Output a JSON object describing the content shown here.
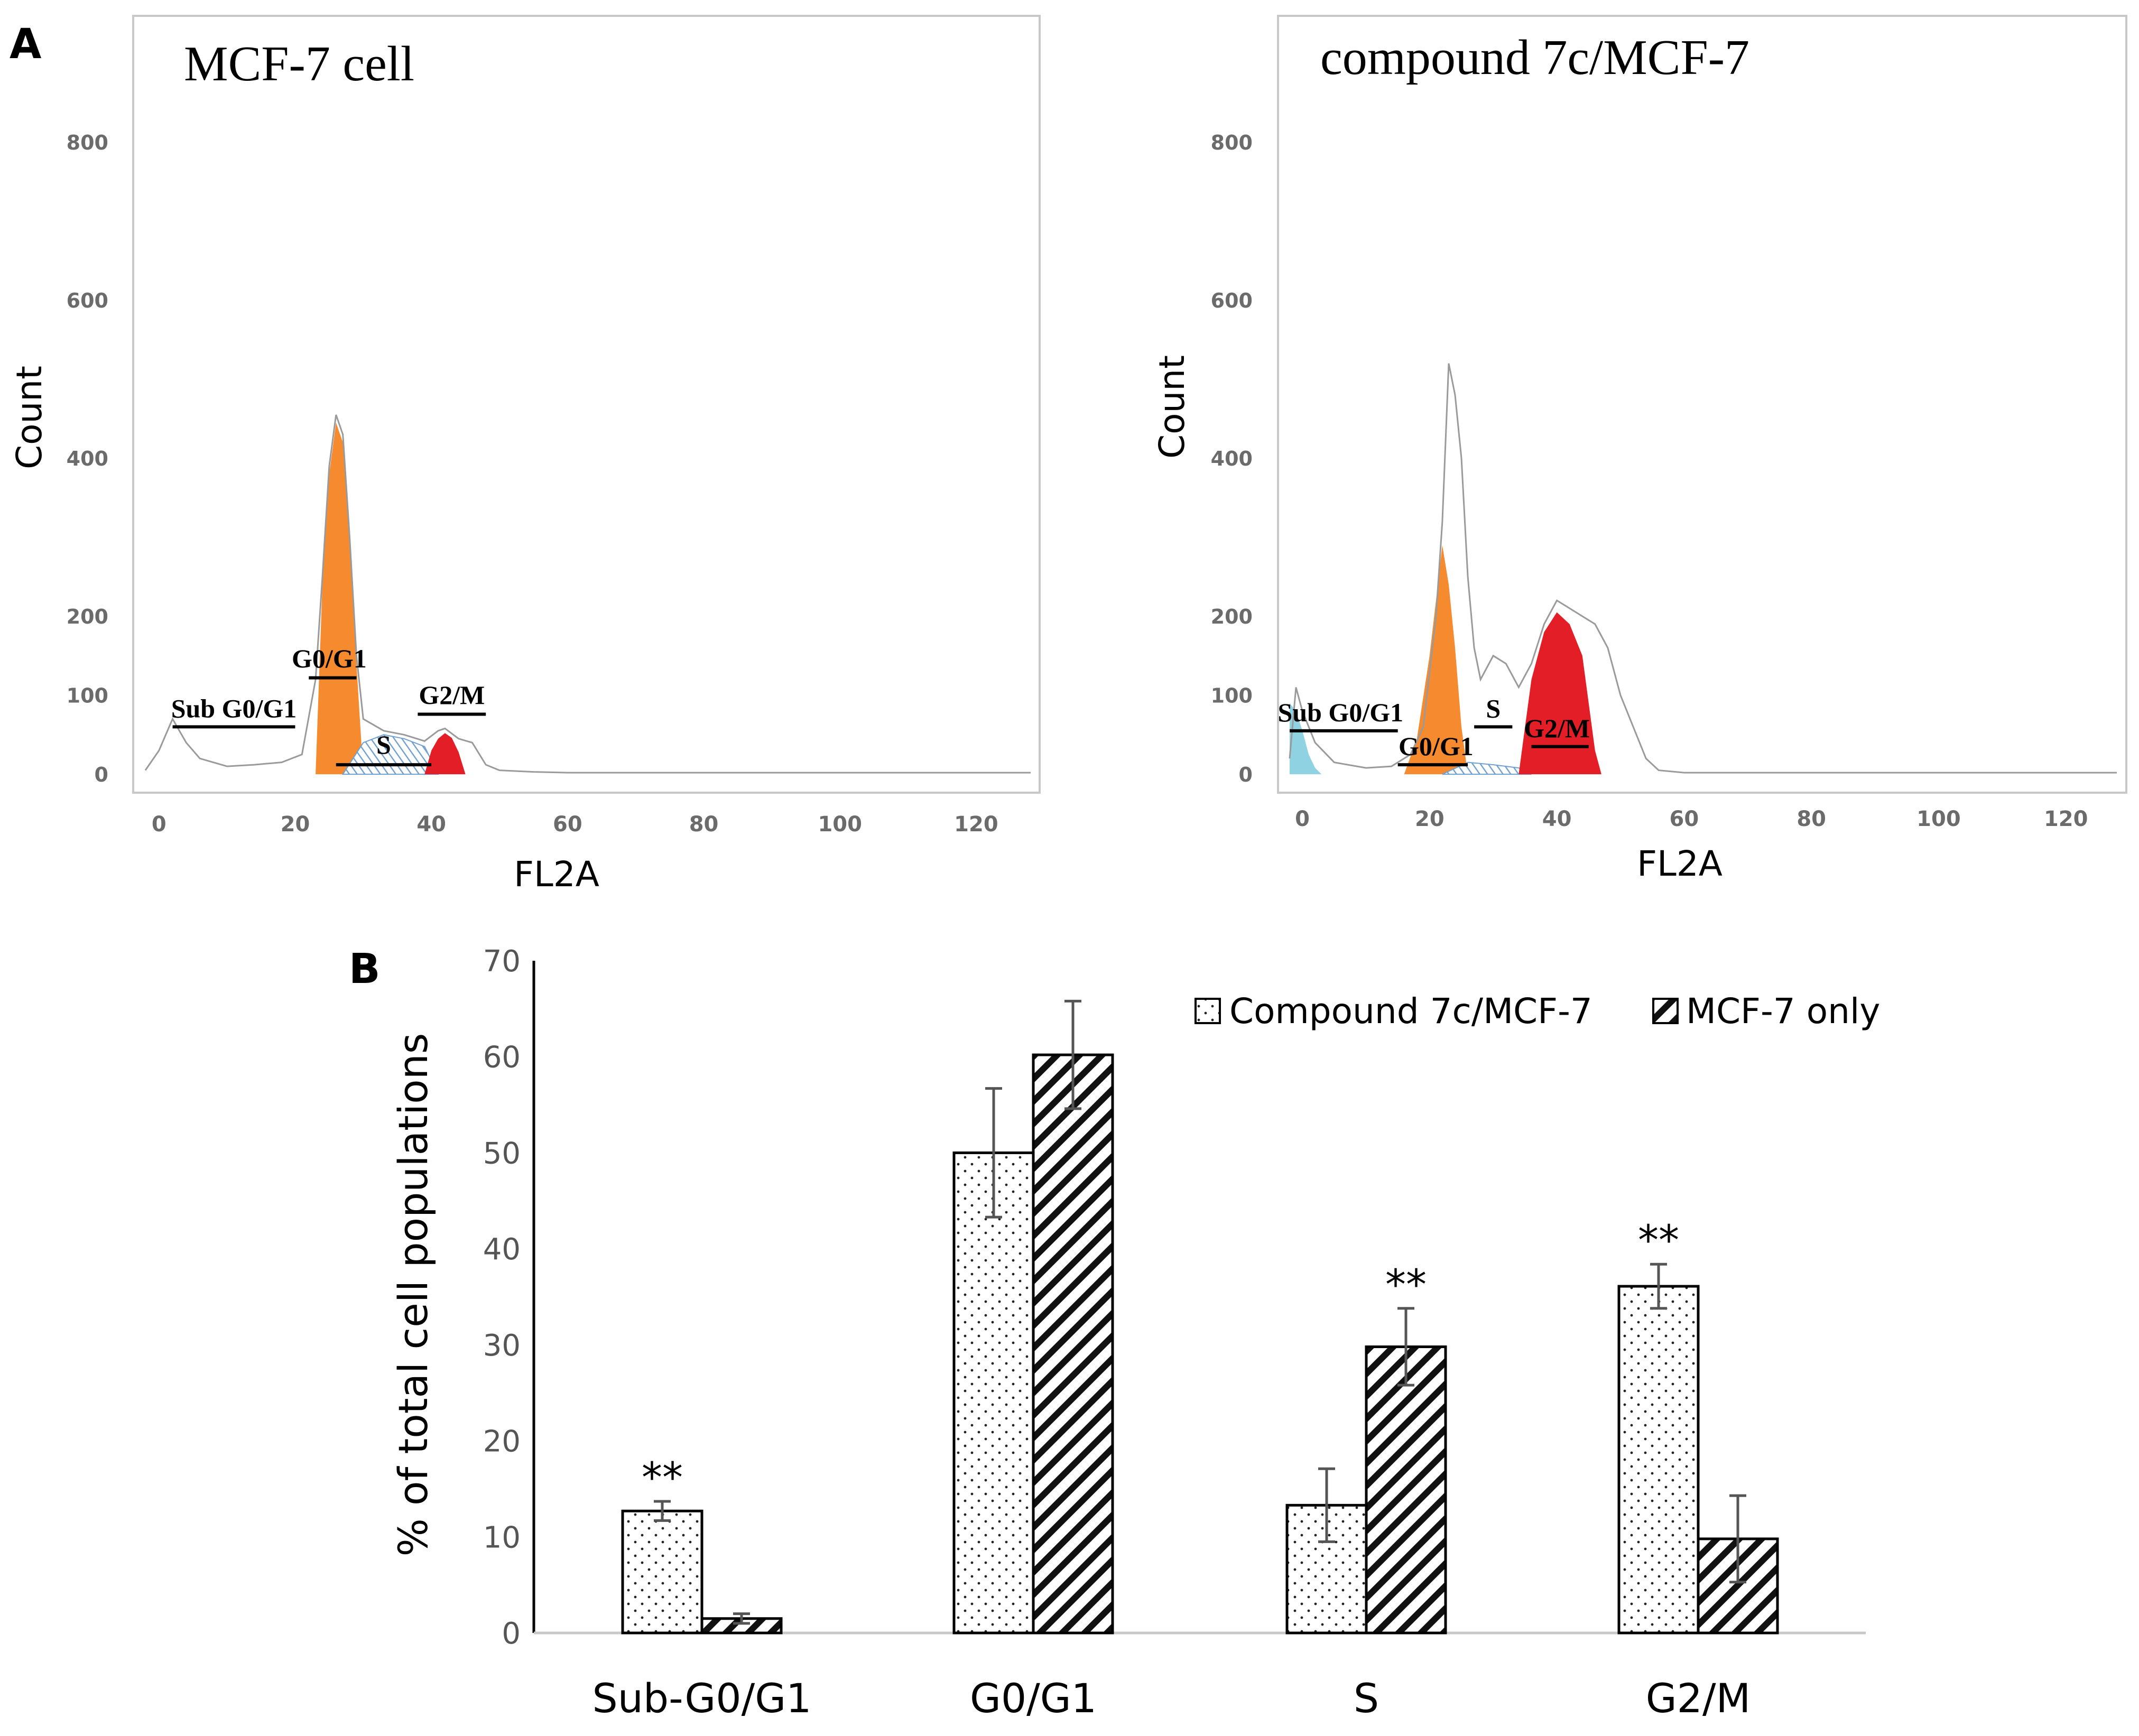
{
  "panel_labels": {
    "a": "A",
    "b": "B"
  },
  "colors": {
    "orange": "#f58a2f",
    "red": "#e31e26",
    "cyan": "#8fd3e3",
    "s_hatch": "#6fa0d0",
    "envelope": "#9a9a9a",
    "frame": "#c8c8c8",
    "tick_text": "#6b6b6b"
  },
  "chart_data": [
    {
      "type": "histogram",
      "title": "MCF-7 cell",
      "xlabel": "FL2A",
      "ylabel": "Count",
      "xlim": [
        -2,
        128
      ],
      "ylim": [
        -10,
        960
      ],
      "xticks": [
        0,
        20,
        40,
        60,
        80,
        100,
        120
      ],
      "yticks": [
        0,
        100,
        200,
        400,
        600,
        800
      ],
      "envelope": [
        [
          -2,
          5
        ],
        [
          0,
          30
        ],
        [
          2,
          70
        ],
        [
          4,
          40
        ],
        [
          6,
          20
        ],
        [
          10,
          10
        ],
        [
          14,
          12
        ],
        [
          18,
          15
        ],
        [
          21,
          25
        ],
        [
          23,
          120
        ],
        [
          24,
          250
        ],
        [
          25,
          390
        ],
        [
          26,
          455
        ],
        [
          27,
          430
        ],
        [
          28,
          300
        ],
        [
          29,
          150
        ],
        [
          30,
          70
        ],
        [
          33,
          55
        ],
        [
          36,
          50
        ],
        [
          39,
          42
        ],
        [
          41,
          55
        ],
        [
          42,
          58
        ],
        [
          44,
          45
        ],
        [
          46,
          40
        ],
        [
          48,
          12
        ],
        [
          50,
          5
        ],
        [
          55,
          3
        ],
        [
          60,
          2
        ],
        [
          128,
          2
        ]
      ],
      "phases": [
        {
          "name": "G0/G1",
          "color_key": "orange",
          "points": [
            [
              23,
              0
            ],
            [
              24,
              240
            ],
            [
              25,
              380
            ],
            [
              26,
              445
            ],
            [
              27,
              420
            ],
            [
              28,
              290
            ],
            [
              29,
              140
            ],
            [
              30,
              0
            ]
          ]
        },
        {
          "name": "S",
          "color_key": "s_hatch",
          "points": [
            [
              27,
              0
            ],
            [
              30,
              40
            ],
            [
              33,
              50
            ],
            [
              36,
              45
            ],
            [
              39,
              35
            ],
            [
              41,
              0
            ]
          ]
        },
        {
          "name": "G2/M",
          "color_key": "red",
          "points": [
            [
              39,
              0
            ],
            [
              40,
              30
            ],
            [
              41,
              45
            ],
            [
              42,
              52
            ],
            [
              43,
              46
            ],
            [
              44,
              28
            ],
            [
              45,
              0
            ]
          ]
        }
      ],
      "gates": [
        {
          "label": "Sub G0/G1",
          "x1": 2,
          "x2": 20,
          "y": 60,
          "label_x": 11,
          "label_y": 72
        },
        {
          "label": "G0/G1",
          "x1": 22,
          "x2": 29,
          "y": 122,
          "label_x": 25,
          "label_y": 135
        },
        {
          "label": "S",
          "x1": 26,
          "x2": 40,
          "y": 12,
          "label_x": 33,
          "label_y": 26
        },
        {
          "label": "G2/M",
          "x1": 38,
          "x2": 48,
          "y": 76,
          "label_x": 43,
          "label_y": 89
        }
      ]
    },
    {
      "type": "histogram",
      "title": "compound 7c/MCF-7",
      "xlabel": "FL2A",
      "ylabel": "Count",
      "xlim": [
        -2,
        128
      ],
      "ylim": [
        -10,
        960
      ],
      "xticks": [
        0,
        20,
        40,
        60,
        80,
        100,
        120
      ],
      "yticks": [
        0,
        100,
        200,
        400,
        600,
        800
      ],
      "envelope": [
        [
          -2,
          20
        ],
        [
          -1,
          110
        ],
        [
          0,
          80
        ],
        [
          2,
          40
        ],
        [
          5,
          15
        ],
        [
          10,
          8
        ],
        [
          14,
          10
        ],
        [
          17,
          25
        ],
        [
          19,
          60
        ],
        [
          21,
          200
        ],
        [
          22,
          320
        ],
        [
          23,
          520
        ],
        [
          24,
          480
        ],
        [
          25,
          400
        ],
        [
          26,
          250
        ],
        [
          27,
          160
        ],
        [
          28,
          120
        ],
        [
          30,
          150
        ],
        [
          32,
          140
        ],
        [
          34,
          110
        ],
        [
          36,
          140
        ],
        [
          38,
          190
        ],
        [
          40,
          220
        ],
        [
          42,
          210
        ],
        [
          44,
          200
        ],
        [
          46,
          190
        ],
        [
          48,
          160
        ],
        [
          50,
          100
        ],
        [
          52,
          60
        ],
        [
          54,
          20
        ],
        [
          56,
          5
        ],
        [
          60,
          2
        ],
        [
          128,
          2
        ]
      ],
      "phases": [
        {
          "name": "Sub G0/G1",
          "color_key": "cyan",
          "points": [
            [
              -2,
              0
            ],
            [
              -2,
              90
            ],
            [
              -1,
              80
            ],
            [
              0,
              55
            ],
            [
              1,
              25
            ],
            [
              2,
              8
            ],
            [
              3,
              0
            ]
          ]
        },
        {
          "name": "G0/G1",
          "color_key": "orange",
          "points": [
            [
              16,
              0
            ],
            [
              18,
              45
            ],
            [
              20,
              150
            ],
            [
              21,
              220
            ],
            [
              22,
              290
            ],
            [
              23,
              240
            ],
            [
              24,
              160
            ],
            [
              25,
              60
            ],
            [
              26,
              0
            ]
          ]
        },
        {
          "name": "S",
          "color_key": "s_hatch",
          "points": [
            [
              22,
              0
            ],
            [
              26,
              15
            ],
            [
              30,
              12
            ],
            [
              34,
              8
            ],
            [
              36,
              0
            ]
          ]
        },
        {
          "name": "G2/M",
          "color_key": "red",
          "points": [
            [
              34,
              0
            ],
            [
              35,
              60
            ],
            [
              36,
              120
            ],
            [
              38,
              180
            ],
            [
              40,
              205
            ],
            [
              42,
              190
            ],
            [
              44,
              150
            ],
            [
              45,
              90
            ],
            [
              46,
              30
            ],
            [
              47,
              0
            ]
          ]
        }
      ],
      "gates": [
        {
          "label": "Sub G0/G1",
          "x1": -2,
          "x2": 15,
          "y": 55,
          "label_x": 6,
          "label_y": 67
        },
        {
          "label": "G0/G1",
          "x1": 15,
          "x2": 26,
          "y": 12,
          "label_x": 21,
          "label_y": 24
        },
        {
          "label": "S",
          "x1": 27,
          "x2": 33,
          "y": 60,
          "label_x": 30,
          "label_y": 72
        },
        {
          "label": "G2/M",
          "x1": 36,
          "x2": 45,
          "y": 35,
          "label_x": 40,
          "label_y": 47
        }
      ]
    },
    {
      "type": "bar",
      "ylabel": "% of total cell populations",
      "ylim": [
        0,
        70
      ],
      "yticks": [
        0,
        10,
        20,
        30,
        40,
        50,
        60,
        70
      ],
      "categories": [
        "Sub-G0/G1",
        "G0/G1",
        "S",
        "G2/M"
      ],
      "series": [
        {
          "name": "Compound 7c/MCF-7",
          "pattern": "dots",
          "values": [
            12.7,
            50.0,
            13.3,
            36.1
          ],
          "errors": [
            1.0,
            6.7,
            3.8,
            2.3
          ],
          "significance": [
            "**",
            "",
            "",
            "**"
          ]
        },
        {
          "name": "MCF-7 only",
          "pattern": "hatch",
          "values": [
            1.5,
            60.2,
            29.8,
            9.8
          ],
          "errors": [
            0.5,
            5.6,
            4.0,
            4.5
          ],
          "significance": [
            "",
            "",
            "**",
            ""
          ]
        }
      ],
      "legend_position": "top-right"
    }
  ]
}
